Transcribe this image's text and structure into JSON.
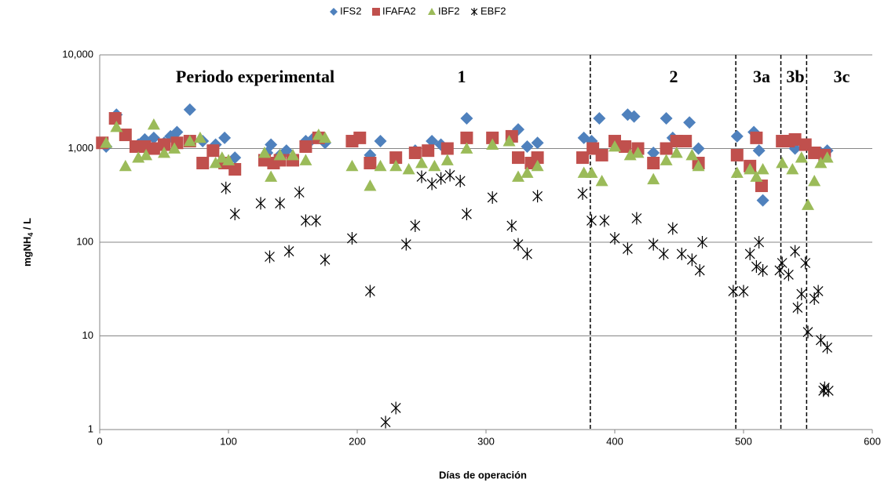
{
  "chart_data": {
    "type": "scatter",
    "log_y": true,
    "grid": true,
    "legend": "top",
    "x_label": "Días de operación",
    "y_label": [
      "mgNH",
      "4",
      " / L"
    ],
    "xlim": [
      0,
      600
    ],
    "xticks": [
      0,
      100,
      200,
      300,
      400,
      500,
      600
    ],
    "ylim": [
      1,
      10000
    ],
    "yticks": [
      1,
      10,
      100,
      {
        "value": 1000,
        "label": "1,000"
      },
      {
        "value": 10000,
        "label": "10,000"
      }
    ],
    "period_boundaries": [
      381,
      494,
      529,
      549
    ],
    "annotations": [
      "Periodo experimental",
      "1",
      "2",
      "3a",
      "3b",
      "3c"
    ],
    "series": [
      {
        "name": "IFS2",
        "color": "#4f81bd",
        "marker": "diamond",
        "x": [
          5,
          13,
          30,
          35,
          42,
          50,
          55,
          60,
          70,
          80,
          90,
          97,
          105,
          130,
          133,
          140,
          145,
          160,
          165,
          175,
          200,
          210,
          218,
          245,
          258,
          265,
          285,
          305,
          325,
          332,
          340,
          376,
          382,
          388,
          410,
          415,
          430,
          440,
          445,
          458,
          465,
          495,
          508,
          512,
          515,
          540,
          560,
          565
        ],
        "values": [
          1050,
          2300,
          1100,
          1250,
          1300,
          1150,
          1350,
          1500,
          2600,
          1200,
          1100,
          1300,
          800,
          900,
          1100,
          850,
          950,
          1200,
          1250,
          1150,
          1250,
          850,
          1200,
          950,
          1200,
          1100,
          2100,
          1250,
          1600,
          1050,
          1150,
          1300,
          1200,
          2100,
          2300,
          2200,
          900,
          2100,
          1300,
          1900,
          1000,
          1350,
          1500,
          950,
          280,
          1000,
          900,
          950
        ]
      },
      {
        "name": "IFAFA2",
        "color": "#c0504d",
        "marker": "square",
        "x": [
          2,
          12,
          20,
          28,
          35,
          42,
          50,
          60,
          70,
          80,
          88,
          97,
          105,
          128,
          135,
          140,
          150,
          160,
          170,
          196,
          202,
          210,
          230,
          245,
          255,
          270,
          285,
          305,
          320,
          325,
          335,
          340,
          375,
          383,
          390,
          400,
          408,
          418,
          430,
          440,
          448,
          455,
          465,
          495,
          505,
          510,
          514,
          530,
          535,
          540,
          548,
          555,
          563
        ],
        "values": [
          1150,
          2100,
          1400,
          1050,
          1050,
          1000,
          1100,
          1150,
          1200,
          700,
          950,
          700,
          600,
          750,
          700,
          750,
          750,
          1050,
          1300,
          1200,
          1300,
          700,
          800,
          900,
          950,
          1000,
          1300,
          1300,
          1350,
          800,
          700,
          800,
          800,
          1000,
          850,
          1200,
          1050,
          1000,
          700,
          1000,
          1200,
          1200,
          700,
          850,
          650,
          1300,
          400,
          1200,
          1200,
          1250,
          1100,
          900,
          850
        ]
      },
      {
        "name": "IBF2",
        "color": "#9bbb59",
        "marker": "triangle",
        "x": [
          5,
          13,
          20,
          30,
          36,
          42,
          50,
          58,
          70,
          78,
          90,
          95,
          100,
          128,
          133,
          140,
          150,
          160,
          170,
          175,
          196,
          210,
          218,
          230,
          240,
          250,
          260,
          270,
          285,
          305,
          318,
          325,
          332,
          340,
          376,
          382,
          390,
          400,
          412,
          418,
          430,
          440,
          448,
          460,
          465,
          495,
          505,
          510,
          515,
          530,
          538,
          545,
          550,
          555,
          560,
          565
        ],
        "values": [
          1150,
          1700,
          650,
          800,
          850,
          1800,
          900,
          1000,
          1200,
          1300,
          700,
          800,
          750,
          900,
          500,
          850,
          850,
          750,
          1400,
          1300,
          650,
          400,
          650,
          650,
          600,
          700,
          650,
          750,
          1000,
          1100,
          1200,
          500,
          550,
          650,
          550,
          550,
          450,
          1050,
          850,
          900,
          470,
          750,
          900,
          850,
          650,
          550,
          600,
          500,
          600,
          700,
          600,
          800,
          250,
          450,
          700,
          800
        ]
      },
      {
        "name": "EBF2",
        "color": "#000000",
        "marker": "asterisk",
        "x": [
          98,
          105,
          125,
          132,
          140,
          147,
          155,
          160,
          168,
          175,
          196,
          210,
          222,
          230,
          238,
          245,
          250,
          258,
          265,
          272,
          280,
          285,
          305,
          320,
          325,
          332,
          340,
          375,
          382,
          392,
          400,
          410,
          417,
          430,
          438,
          445,
          452,
          460,
          466,
          468,
          492,
          500,
          505,
          510,
          512,
          515,
          528,
          530,
          535,
          540,
          542,
          545,
          548,
          550,
          555,
          558,
          560,
          562,
          563,
          565,
          566
        ],
        "values": [
          380,
          200,
          260,
          70,
          260,
          80,
          340,
          170,
          170,
          65,
          110,
          30,
          1.2,
          1.7,
          95,
          150,
          500,
          420,
          480,
          520,
          450,
          200,
          300,
          150,
          95,
          75,
          310,
          330,
          170,
          170,
          110,
          85,
          180,
          95,
          75,
          140,
          75,
          65,
          50,
          100,
          30,
          30,
          75,
          55,
          100,
          50,
          50,
          60,
          45,
          80,
          20,
          28,
          60,
          11,
          25,
          30,
          9,
          2.6,
          2.8,
          7.5,
          2.6
        ]
      }
    ]
  }
}
